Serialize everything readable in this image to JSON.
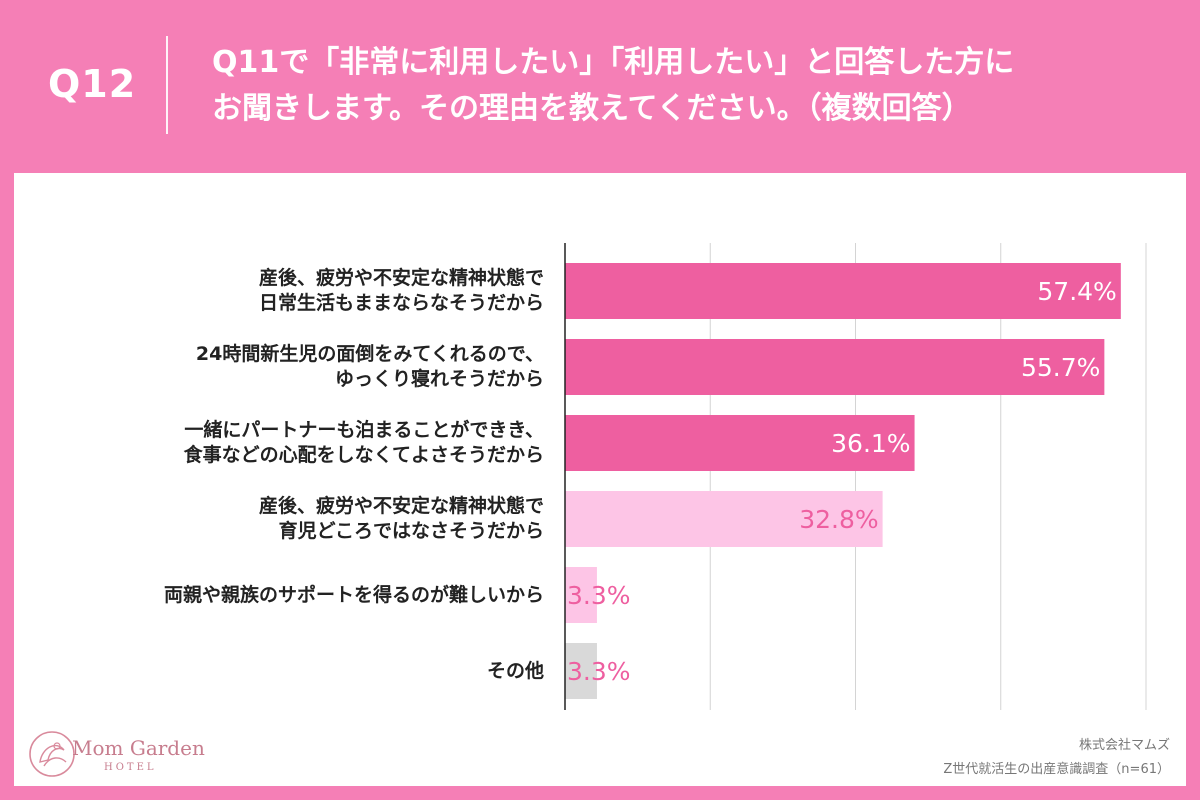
{
  "header": {
    "qnum": "Q12",
    "title_line1": "Q11で「非常に利用したい」「利用したい」と回答した方に",
    "title_line2": "お聞きします。その理由を教えてください。（複数回答）"
  },
  "chart_data": {
    "type": "bar",
    "orientation": "horizontal",
    "categories": [
      [
        "産後、疲労や不安定な精神状態で",
        "日常生活もままならなそうだから"
      ],
      [
        "24時間新生児の面倒をみてくれるので、",
        "ゆっくり寝れそうだから"
      ],
      [
        "一緒にパートナーも泊まることができき、",
        "食事などの心配をしなくてよさそうだから"
      ],
      [
        "産後、疲労や不安定な精神状態で",
        "育児どころではなさそうだから"
      ],
      [
        "両親や親族のサポートを得るのが難しいから"
      ],
      [
        "その他"
      ]
    ],
    "values": [
      57.4,
      55.7,
      36.1,
      32.8,
      3.3,
      3.3
    ],
    "value_labels": [
      "57.4%",
      "55.7%",
      "36.1%",
      "32.8%",
      "3.3%",
      "3.3%"
    ],
    "bar_colors": [
      "#ee5fa0",
      "#ee5fa0",
      "#ee5fa0",
      "#fdc5e6",
      "#fdc5e6",
      "#d9d9d9"
    ],
    "label_colors": [
      "#ffffff",
      "#ffffff",
      "#ffffff",
      "#ee5fa0",
      "#ee5fa0",
      "#ee5fa0"
    ],
    "xlim": [
      0,
      60
    ],
    "grid": true,
    "gridline_step": 15
  },
  "logo": {
    "name": "Mom Garden",
    "sub": "HOTEL"
  },
  "source": {
    "line1": "株式会社マムズ",
    "line2": "Z世代就活生の出産意識調査（n=61）"
  }
}
